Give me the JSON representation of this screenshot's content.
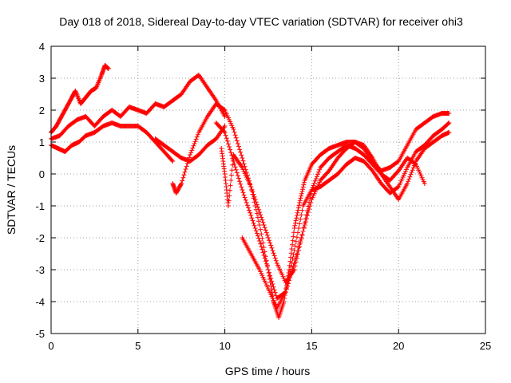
{
  "chart_data": {
    "type": "scatter",
    "title": "Day 018 of 2018, Sidereal Day-to-day VTEC variation (SDTVAR) for receiver ohi3",
    "xlabel": "GPS time / hours",
    "ylabel": "SDTVAR / TECUs",
    "xlim": [
      0,
      25
    ],
    "ylim": [
      -5,
      4
    ],
    "xticks": [
      "0",
      "5",
      "10",
      "15",
      "20",
      "25"
    ],
    "yticks": [
      "-5",
      "-4",
      "-3",
      "-2",
      "-1",
      "0",
      "1",
      "2",
      "3",
      "4"
    ],
    "grid": true,
    "marker": "plus",
    "color": "#ff0000",
    "series": [
      {
        "x": [
          0.0,
          0.3,
          0.6,
          0.9,
          1.2,
          1.4,
          1.7,
          2.0,
          2.3,
          2.6,
          2.9,
          3.1,
          3.3
        ],
        "y": [
          1.3,
          1.5,
          1.8,
          2.1,
          2.4,
          2.6,
          2.2,
          2.4,
          2.6,
          2.7,
          3.1,
          3.4,
          3.3
        ]
      },
      {
        "x": [
          0.0,
          0.5,
          1.0,
          1.5,
          2.0,
          2.5,
          3.0,
          3.5,
          4.0,
          4.5,
          5.0,
          5.5,
          6.0,
          6.5,
          7.0,
          7.5,
          8.0,
          8.5,
          9.0,
          9.5,
          10.0
        ],
        "y": [
          1.1,
          1.2,
          1.5,
          1.7,
          1.8,
          1.5,
          1.8,
          2.0,
          1.8,
          2.1,
          2.0,
          1.9,
          2.2,
          2.1,
          2.3,
          2.5,
          2.9,
          3.1,
          2.7,
          2.3,
          1.8
        ]
      },
      {
        "x": [
          0.0,
          0.4,
          0.8,
          1.2,
          1.6,
          2.0,
          2.5,
          3.0,
          3.5,
          4.0,
          4.5,
          5.0,
          5.5,
          6.0,
          6.5,
          7.0
        ],
        "y": [
          0.9,
          0.8,
          0.7,
          0.9,
          1.0,
          1.2,
          1.3,
          1.5,
          1.6,
          1.5,
          1.5,
          1.5,
          1.3,
          1.0,
          0.7,
          0.4
        ]
      },
      {
        "x": [
          6.0,
          6.5,
          7.0,
          7.5,
          8.0,
          8.5,
          9.0,
          9.5,
          10.0
        ],
        "y": [
          1.1,
          0.9,
          0.7,
          0.5,
          0.4,
          0.6,
          0.9,
          1.1,
          1.5
        ]
      },
      {
        "x": [
          7.0,
          7.2,
          7.5,
          8.0,
          8.5,
          9.0,
          9.5,
          10.0,
          10.5,
          11.0,
          11.5,
          12.0,
          12.5,
          12.8,
          13.1,
          13.4,
          13.7,
          14.0,
          14.3,
          14.6,
          15.0,
          15.5,
          16.0,
          16.5,
          17.0,
          17.5,
          18.0,
          18.5,
          19.0,
          19.5,
          20.0,
          20.5,
          21.0,
          21.5,
          22.0,
          22.5,
          22.9
        ],
        "y": [
          -0.3,
          -0.6,
          -0.3,
          0.6,
          1.3,
          1.8,
          2.2,
          2.0,
          1.4,
          0.5,
          -0.4,
          -1.6,
          -3.0,
          -4.0,
          -4.5,
          -4.0,
          -3.0,
          -1.7,
          -0.9,
          -0.2,
          0.3,
          0.6,
          0.8,
          0.9,
          1.0,
          1.0,
          0.8,
          0.4,
          0.1,
          0.2,
          0.4,
          0.9,
          1.4,
          1.6,
          1.8,
          1.9,
          1.9
        ]
      },
      {
        "x": [
          9.5,
          10.0,
          10.5,
          11.0,
          11.5,
          12.0,
          12.5,
          13.0,
          13.5,
          14.0,
          14.5,
          15.0,
          15.5,
          16.0,
          16.5,
          17.0,
          17.5,
          18.0,
          18.5,
          19.0,
          19.5,
          20.0,
          20.5,
          21.0,
          21.5,
          22.0,
          22.5,
          22.9
        ],
        "y": [
          1.6,
          1.3,
          0.4,
          -0.5,
          -1.3,
          -2.1,
          -3.0,
          -3.9,
          -3.7,
          -2.8,
          -1.8,
          -0.8,
          -0.2,
          0.1,
          0.5,
          0.8,
          1.0,
          0.9,
          0.5,
          0.0,
          -0.4,
          -0.8,
          -0.3,
          0.4,
          0.8,
          1.0,
          1.2,
          1.3
        ]
      },
      {
        "x": [
          9.8,
          10.0,
          10.2,
          10.5,
          11.0,
          11.5,
          12.0,
          12.5,
          13.0,
          13.5,
          14.0,
          14.5,
          15.0,
          15.5,
          16.0,
          16.5,
          17.0,
          17.5,
          18.0,
          18.5,
          19.0,
          19.5,
          20.0,
          20.5,
          21.0,
          21.5
        ],
        "y": [
          0.8,
          0.0,
          -1.0,
          0.6,
          0.2,
          -0.4,
          -1.2,
          -2.0,
          -2.8,
          -3.4,
          -3.0,
          -1.8,
          -0.5,
          0.2,
          0.5,
          0.7,
          0.9,
          0.8,
          0.6,
          0.3,
          0.0,
          -0.2,
          0.1,
          0.5,
          0.3,
          -0.3
        ]
      },
      {
        "x": [
          11.0,
          11.5,
          12.0,
          12.5,
          13.0,
          13.5,
          14.0,
          14.5,
          15.0,
          15.5,
          16.0,
          16.5,
          17.0,
          17.5,
          18.0,
          18.5,
          19.0,
          19.5,
          20.0,
          20.5,
          21.0,
          21.5,
          22.0,
          22.5,
          22.9
        ],
        "y": [
          -2.0,
          -2.5,
          -3.0,
          -3.6,
          -4.2,
          -3.7,
          -2.4,
          -1.0,
          -0.5,
          -0.4,
          -0.2,
          0.0,
          0.3,
          0.5,
          0.4,
          0.1,
          -0.3,
          -0.6,
          -0.4,
          0.2,
          0.7,
          0.9,
          1.2,
          1.4,
          1.6
        ]
      }
    ]
  }
}
